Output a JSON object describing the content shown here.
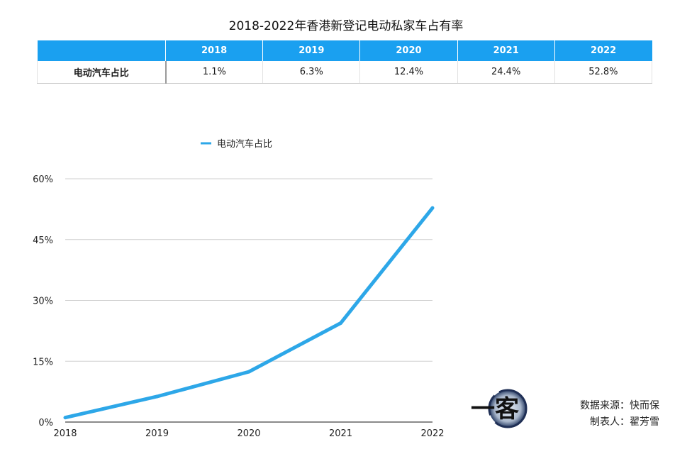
{
  "chart_data": {
    "type": "line",
    "title": "2018-2022年香港新登记电动私家车占有率",
    "categories": [
      "2018",
      "2019",
      "2020",
      "2021",
      "2022"
    ],
    "series": [
      {
        "name": "电动汽车占比",
        "values": [
          1.1,
          6.3,
          12.4,
          24.4,
          52.8
        ],
        "color": "#2da7e8"
      }
    ],
    "ylim": [
      0,
      60
    ],
    "yticks": [
      0,
      15,
      30,
      45,
      60
    ],
    "ytick_labels": [
      "0%",
      "15%",
      "30%",
      "45%",
      "60%"
    ],
    "legend_position": "top-center",
    "grid": true,
    "xlabel": "",
    "ylabel": ""
  },
  "table": {
    "row_label": "电动汽车占比",
    "columns": [
      "2018",
      "2019",
      "2020",
      "2021",
      "2022"
    ],
    "values": [
      "1.1%",
      "6.3%",
      "12.4%",
      "24.4%",
      "52.8%"
    ]
  },
  "logo": {
    "text": "一客"
  },
  "credits": {
    "source": "数据来源：快而保",
    "author": "制表人：翟芳雪"
  },
  "colors": {
    "header": "#1aa0f0",
    "line": "#2da7e8"
  }
}
